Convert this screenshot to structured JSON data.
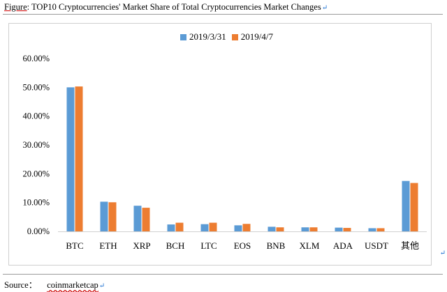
{
  "caption": {
    "prefix": "Figure",
    "suffix": ": TOP10 Cryptocurrencies' Market Share of Total Cryptocurrencies Market Changes",
    "para_mark": "↵"
  },
  "source": {
    "label": "Source：",
    "value": "coinmarketcap",
    "para_mark": "↵"
  },
  "side_mark": "↵",
  "colors": {
    "series1": "#5b9bd5",
    "series2": "#ed7d31"
  },
  "chart_data": {
    "type": "bar",
    "title": "",
    "xlabel": "",
    "ylabel": "",
    "categories": [
      "BTC",
      "ETH",
      "XRP",
      "BCH",
      "LTC",
      "EOS",
      "BNB",
      "XLM",
      "ADA",
      "USDT",
      "其他"
    ],
    "series": [
      {
        "name": "2019/3/31",
        "values": [
          50.0,
          10.3,
          8.9,
          2.4,
          2.5,
          2.1,
          1.6,
          1.4,
          1.3,
          1.1,
          17.5
        ]
      },
      {
        "name": "2019/4/7",
        "values": [
          50.3,
          10.1,
          8.2,
          3.0,
          3.0,
          2.6,
          1.4,
          1.4,
          1.2,
          1.1,
          16.8
        ]
      }
    ],
    "ylim": [
      0,
      60
    ],
    "yticks": [
      "0.00%",
      "10.00%",
      "20.00%",
      "30.00%",
      "40.00%",
      "50.00%",
      "60.00%"
    ],
    "grid": false,
    "legend": "top-center"
  }
}
